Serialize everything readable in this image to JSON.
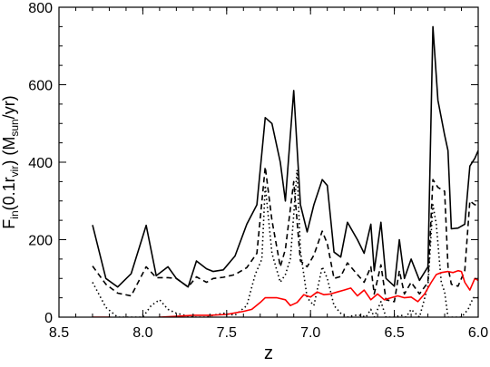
{
  "chart_data": {
    "type": "line",
    "title": "",
    "xlabel": "z",
    "ylabel": {
      "main": "F",
      "sub_in": "in",
      "paren1": "(0.1r",
      "sub_vir": "vir",
      "paren2": ") (M",
      "sub_sun": "sun",
      "unit": "/yr)"
    },
    "xlim": [
      8.5,
      6.0
    ],
    "ylim": [
      0,
      800
    ],
    "x_reversed": true,
    "xticks": [
      8.5,
      8.0,
      7.5,
      7.0,
      6.5,
      6.0
    ],
    "xtick_labels": [
      "8.5",
      "8.0",
      "7.5",
      "7.0",
      "6.5",
      "6.0"
    ],
    "yticks": [
      0,
      200,
      400,
      600,
      800
    ],
    "ytick_labels": [
      "0",
      "200",
      "400",
      "600",
      "800"
    ],
    "grid": false,
    "legend": "none",
    "series": [
      {
        "style": "solid",
        "color": "#000000",
        "points": [
          [
            8.3,
            238
          ],
          [
            8.22,
            100
          ],
          [
            8.15,
            78
          ],
          [
            8.07,
            112
          ],
          [
            7.98,
            237
          ],
          [
            7.92,
            107
          ],
          [
            7.85,
            130
          ],
          [
            7.8,
            100
          ],
          [
            7.73,
            78
          ],
          [
            7.68,
            145
          ],
          [
            7.62,
            125
          ],
          [
            7.58,
            118
          ],
          [
            7.52,
            122
          ],
          [
            7.45,
            158
          ],
          [
            7.38,
            240
          ],
          [
            7.32,
            290
          ],
          [
            7.27,
            515
          ],
          [
            7.23,
            500
          ],
          [
            7.18,
            400
          ],
          [
            7.15,
            300
          ],
          [
            7.1,
            585
          ],
          [
            7.06,
            290
          ],
          [
            7.02,
            220
          ],
          [
            6.98,
            290
          ],
          [
            6.93,
            355
          ],
          [
            6.9,
            340
          ],
          [
            6.86,
            168
          ],
          [
            6.82,
            155
          ],
          [
            6.78,
            245
          ],
          [
            6.72,
            200
          ],
          [
            6.68,
            165
          ],
          [
            6.64,
            240
          ],
          [
            6.62,
            120
          ],
          [
            6.58,
            245
          ],
          [
            6.55,
            100
          ],
          [
            6.5,
            80
          ],
          [
            6.47,
            200
          ],
          [
            6.44,
            100
          ],
          [
            6.4,
            150
          ],
          [
            6.35,
            95
          ],
          [
            6.3,
            130
          ],
          [
            6.27,
            750
          ],
          [
            6.24,
            560
          ],
          [
            6.2,
            470
          ],
          [
            6.18,
            430
          ],
          [
            6.16,
            228
          ],
          [
            6.12,
            230
          ],
          [
            6.08,
            240
          ],
          [
            6.05,
            390
          ],
          [
            6.02,
            410
          ],
          [
            6.0,
            430
          ]
        ]
      },
      {
        "style": "dashed",
        "color": "#000000",
        "points": [
          [
            8.3,
            132
          ],
          [
            8.22,
            85
          ],
          [
            8.15,
            62
          ],
          [
            8.07,
            55
          ],
          [
            7.98,
            130
          ],
          [
            7.92,
            102
          ],
          [
            7.85,
            102
          ],
          [
            7.8,
            100
          ],
          [
            7.73,
            78
          ],
          [
            7.68,
            104
          ],
          [
            7.62,
            90
          ],
          [
            7.58,
            100
          ],
          [
            7.52,
            103
          ],
          [
            7.45,
            110
          ],
          [
            7.38,
            128
          ],
          [
            7.32,
            165
          ],
          [
            7.27,
            388
          ],
          [
            7.23,
            250
          ],
          [
            7.18,
            130
          ],
          [
            7.15,
            175
          ],
          [
            7.1,
            350
          ],
          [
            7.06,
            145
          ],
          [
            7.02,
            130
          ],
          [
            6.98,
            160
          ],
          [
            6.93,
            222
          ],
          [
            6.9,
            190
          ],
          [
            6.86,
            100
          ],
          [
            6.82,
            105
          ],
          [
            6.78,
            140
          ],
          [
            6.72,
            110
          ],
          [
            6.68,
            90
          ],
          [
            6.64,
            130
          ],
          [
            6.62,
            60
          ],
          [
            6.58,
            135
          ],
          [
            6.55,
            45
          ],
          [
            6.5,
            40
          ],
          [
            6.47,
            120
          ],
          [
            6.44,
            60
          ],
          [
            6.4,
            90
          ],
          [
            6.35,
            60
          ],
          [
            6.3,
            90
          ],
          [
            6.27,
            355
          ],
          [
            6.24,
            335
          ],
          [
            6.2,
            325
          ],
          [
            6.18,
            130
          ],
          [
            6.16,
            85
          ],
          [
            6.12,
            80
          ],
          [
            6.08,
            120
          ],
          [
            6.05,
            300
          ],
          [
            6.02,
            290
          ],
          [
            6.0,
            290
          ]
        ]
      },
      {
        "style": "dotted",
        "color": "#000000",
        "points": [
          [
            8.3,
            90
          ],
          [
            8.22,
            25
          ],
          [
            8.15,
            0
          ],
          [
            8.07,
            0
          ],
          [
            8.0,
            0
          ],
          [
            7.95,
            30
          ],
          [
            7.9,
            45
          ],
          [
            7.85,
            20
          ],
          [
            7.8,
            10
          ],
          [
            7.75,
            5
          ],
          [
            7.7,
            0
          ],
          [
            7.62,
            0
          ],
          [
            7.58,
            5
          ],
          [
            7.52,
            10
          ],
          [
            7.45,
            5
          ],
          [
            7.38,
            30
          ],
          [
            7.33,
            110
          ],
          [
            7.29,
            150
          ],
          [
            7.27,
            340
          ],
          [
            7.23,
            165
          ],
          [
            7.18,
            90
          ],
          [
            7.15,
            110
          ],
          [
            7.12,
            150
          ],
          [
            7.08,
            380
          ],
          [
            7.06,
            170
          ],
          [
            7.02,
            50
          ],
          [
            6.98,
            30
          ],
          [
            6.93,
            130
          ],
          [
            6.9,
            100
          ],
          [
            6.86,
            30
          ],
          [
            6.82,
            10
          ],
          [
            6.78,
            0
          ],
          [
            6.74,
            5
          ],
          [
            6.7,
            5
          ],
          [
            6.67,
            0
          ],
          [
            6.64,
            20
          ],
          [
            6.62,
            0
          ],
          [
            6.58,
            40
          ],
          [
            6.55,
            0
          ],
          [
            6.5,
            0
          ],
          [
            6.46,
            5
          ],
          [
            6.43,
            0
          ],
          [
            6.4,
            20
          ],
          [
            6.35,
            0
          ],
          [
            6.3,
            80
          ],
          [
            6.27,
            290
          ],
          [
            6.25,
            240
          ],
          [
            6.22,
            90
          ],
          [
            6.2,
            65
          ],
          [
            6.18,
            0
          ],
          [
            6.14,
            0
          ],
          [
            6.1,
            0
          ],
          [
            6.06,
            20
          ],
          [
            6.03,
            50
          ],
          [
            6.0,
            50
          ]
        ]
      },
      {
        "style": "solid",
        "color": "#ff0000",
        "points": [
          [
            8.3,
            0
          ],
          [
            8.25,
            0
          ],
          [
            8.2,
            0
          ],
          [
            8.1,
            -5
          ],
          [
            8.0,
            -5
          ],
          [
            7.9,
            0
          ],
          [
            7.8,
            2
          ],
          [
            7.7,
            5
          ],
          [
            7.6,
            5
          ],
          [
            7.5,
            7
          ],
          [
            7.4,
            15
          ],
          [
            7.35,
            20
          ],
          [
            7.3,
            38
          ],
          [
            7.27,
            50
          ],
          [
            7.2,
            50
          ],
          [
            7.15,
            45
          ],
          [
            7.12,
            30
          ],
          [
            7.08,
            38
          ],
          [
            7.04,
            58
          ],
          [
            7.0,
            52
          ],
          [
            6.96,
            65
          ],
          [
            6.92,
            58
          ],
          [
            6.88,
            60
          ],
          [
            6.84,
            65
          ],
          [
            6.8,
            70
          ],
          [
            6.76,
            75
          ],
          [
            6.72,
            55
          ],
          [
            6.68,
            70
          ],
          [
            6.64,
            45
          ],
          [
            6.6,
            60
          ],
          [
            6.56,
            45
          ],
          [
            6.52,
            50
          ],
          [
            6.48,
            55
          ],
          [
            6.44,
            50
          ],
          [
            6.4,
            52
          ],
          [
            6.36,
            40
          ],
          [
            6.32,
            60
          ],
          [
            6.28,
            90
          ],
          [
            6.25,
            110
          ],
          [
            6.22,
            115
          ],
          [
            6.18,
            118
          ],
          [
            6.15,
            115
          ],
          [
            6.12,
            120
          ],
          [
            6.1,
            118
          ],
          [
            6.08,
            90
          ],
          [
            6.05,
            70
          ],
          [
            6.02,
            100
          ],
          [
            6.0,
            95
          ]
        ]
      }
    ]
  }
}
